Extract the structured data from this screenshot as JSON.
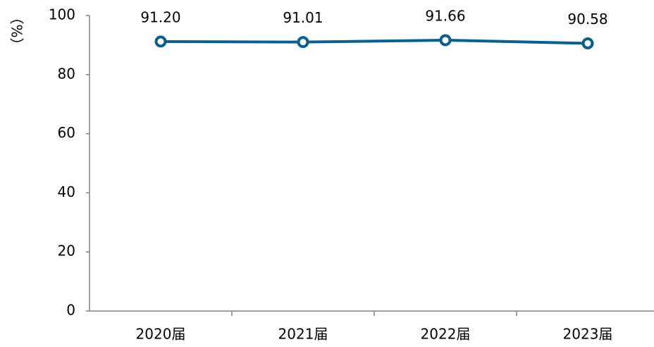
{
  "chart_data": {
    "type": "line",
    "y_label": "（%）",
    "categories": [
      "2020届",
      "2021届",
      "2022届",
      "2023届"
    ],
    "series": [
      {
        "color": "#0b5f8f",
        "values": [
          91.2,
          91.01,
          91.66,
          90.58
        ],
        "value_labels": [
          "91.20",
          "91.01",
          "91.66",
          "90.58"
        ]
      }
    ],
    "ylim": [
      0,
      100
    ],
    "yticks": [
      0,
      20,
      40,
      60,
      80,
      100
    ]
  }
}
